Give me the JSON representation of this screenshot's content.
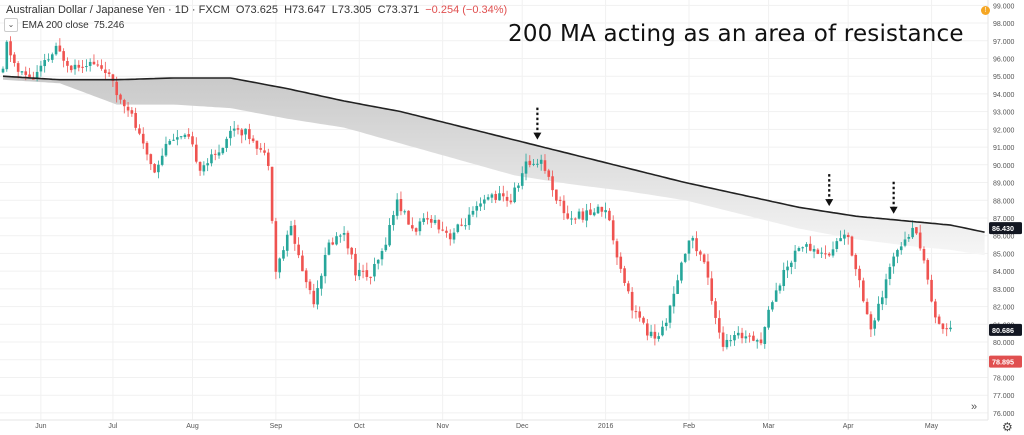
{
  "header": {
    "symbol": "Australian Dollar / Japanese Yen · 1D · FXCM",
    "open": "O73.625",
    "high": "H73.647",
    "low": "L73.305",
    "close": "C73.371",
    "change": "−0.254 (−0.34%)",
    "indicator_name": "EMA 200 close",
    "indicator_value": "75.246",
    "toggle_icon": "chevron-down-icon"
  },
  "annotation": "200 MA acting as an area of resistance",
  "badges": {
    "current_price": "86.430",
    "last_price": "80.686",
    "red_price": "78.895",
    "alert": "!"
  },
  "colors": {
    "up": "#26a69a",
    "down": "#ef5350",
    "ma": "#222222",
    "band": "#d0d0d0",
    "red_badge": "#e04f4f"
  },
  "chart_data": {
    "type": "candlestick",
    "title": "Australian Dollar / Japanese Yen · 1D · FXCM",
    "ylim": [
      75.6,
      99.3
    ],
    "y_ticks": [
      "99.000",
      "98.000",
      "97.000",
      "96.000",
      "95.000",
      "94.000",
      "93.000",
      "92.000",
      "91.000",
      "90.000",
      "89.000",
      "88.000",
      "87.000",
      "86.000",
      "85.000",
      "84.000",
      "83.000",
      "82.000",
      "81.000",
      "80.000",
      "79.000",
      "78.000",
      "77.000",
      "76.000"
    ],
    "x_labels": [
      "Jun",
      "Jul",
      "Aug",
      "Sep",
      "Oct",
      "Nov",
      "Dec",
      "2016",
      "Feb",
      "Mar",
      "Apr",
      "May"
    ],
    "x_label_index": [
      10,
      29,
      50,
      72,
      94,
      116,
      137,
      159,
      181,
      202,
      223,
      245
    ],
    "price_path": [
      {
        "i": 0,
        "p": 95.2
      },
      {
        "i": 1,
        "p": 96.8
      },
      {
        "i": 4,
        "p": 95.2
      },
      {
        "i": 8,
        "p": 94.9
      },
      {
        "i": 14,
        "p": 96.5
      },
      {
        "i": 18,
        "p": 95.6
      },
      {
        "i": 22,
        "p": 95.8
      },
      {
        "i": 27,
        "p": 95.4
      },
      {
        "i": 30,
        "p": 94.0
      },
      {
        "i": 33,
        "p": 93.3
      },
      {
        "i": 37,
        "p": 91.0
      },
      {
        "i": 40,
        "p": 89.7
      },
      {
        "i": 44,
        "p": 91.6
      },
      {
        "i": 49,
        "p": 91.4
      },
      {
        "i": 52,
        "p": 89.9
      },
      {
        "i": 56,
        "p": 90.5
      },
      {
        "i": 61,
        "p": 92.2
      },
      {
        "i": 66,
        "p": 91.5
      },
      {
        "i": 70,
        "p": 90.2
      },
      {
        "i": 72,
        "p": 84.0
      },
      {
        "i": 76,
        "p": 86.5
      },
      {
        "i": 79,
        "p": 84.0
      },
      {
        "i": 82,
        "p": 82.4
      },
      {
        "i": 86,
        "p": 85.5
      },
      {
        "i": 90,
        "p": 86.3
      },
      {
        "i": 93,
        "p": 84.0
      },
      {
        "i": 97,
        "p": 83.7
      },
      {
        "i": 100,
        "p": 85.0
      },
      {
        "i": 104,
        "p": 88.0
      },
      {
        "i": 108,
        "p": 86.3
      },
      {
        "i": 113,
        "p": 87.0
      },
      {
        "i": 118,
        "p": 86.0
      },
      {
        "i": 124,
        "p": 87.2
      },
      {
        "i": 129,
        "p": 88.3
      },
      {
        "i": 134,
        "p": 88.0
      },
      {
        "i": 138,
        "p": 90.0
      },
      {
        "i": 142,
        "p": 90.3
      },
      {
        "i": 146,
        "p": 88.2
      },
      {
        "i": 149,
        "p": 87.0
      },
      {
        "i": 154,
        "p": 87.2
      },
      {
        "i": 159,
        "p": 87.6
      },
      {
        "i": 162,
        "p": 85.0
      },
      {
        "i": 166,
        "p": 82.0
      },
      {
        "i": 170,
        "p": 80.5
      },
      {
        "i": 173,
        "p": 80.2
      },
      {
        "i": 177,
        "p": 82.5
      },
      {
        "i": 181,
        "p": 86.0
      },
      {
        "i": 185,
        "p": 84.5
      },
      {
        "i": 188,
        "p": 81.5
      },
      {
        "i": 190,
        "p": 79.8
      },
      {
        "i": 193,
        "p": 80.2
      },
      {
        "i": 197,
        "p": 80.5
      },
      {
        "i": 200,
        "p": 80.0
      },
      {
        "i": 203,
        "p": 82.5
      },
      {
        "i": 207,
        "p": 84.3
      },
      {
        "i": 210,
        "p": 85.5
      },
      {
        "i": 214,
        "p": 85.2
      },
      {
        "i": 218,
        "p": 84.9
      },
      {
        "i": 221,
        "p": 86.0
      },
      {
        "i": 223,
        "p": 85.8
      },
      {
        "i": 226,
        "p": 83.5
      },
      {
        "i": 229,
        "p": 80.7
      },
      {
        "i": 232,
        "p": 82.5
      },
      {
        "i": 235,
        "p": 85.0
      },
      {
        "i": 238,
        "p": 86.0
      },
      {
        "i": 241,
        "p": 86.4
      },
      {
        "i": 243,
        "p": 84.5
      },
      {
        "i": 246,
        "p": 81.5
      },
      {
        "i": 248,
        "p": 80.7
      },
      {
        "i": 250,
        "p": 81.0
      }
    ],
    "ma_200": [
      {
        "i": 0,
        "p": 95.0
      },
      {
        "i": 15,
        "p": 94.8
      },
      {
        "i": 30,
        "p": 94.8
      },
      {
        "i": 45,
        "p": 94.9
      },
      {
        "i": 60,
        "p": 94.9
      },
      {
        "i": 75,
        "p": 94.3
      },
      {
        "i": 90,
        "p": 93.6
      },
      {
        "i": 105,
        "p": 93.0
      },
      {
        "i": 120,
        "p": 92.2
      },
      {
        "i": 135,
        "p": 91.4
      },
      {
        "i": 150,
        "p": 90.6
      },
      {
        "i": 165,
        "p": 89.8
      },
      {
        "i": 180,
        "p": 89.0
      },
      {
        "i": 195,
        "p": 88.3
      },
      {
        "i": 210,
        "p": 87.6
      },
      {
        "i": 225,
        "p": 87.1
      },
      {
        "i": 240,
        "p": 86.8
      },
      {
        "i": 250,
        "p": 86.6
      },
      {
        "i": 259,
        "p": 86.2
      }
    ],
    "band_lower": [
      {
        "i": 0,
        "p": 94.8
      },
      {
        "i": 15,
        "p": 94.6
      },
      {
        "i": 30,
        "p": 93.4
      },
      {
        "i": 45,
        "p": 93.4
      },
      {
        "i": 60,
        "p": 93.2
      },
      {
        "i": 75,
        "p": 92.6
      },
      {
        "i": 90,
        "p": 92.1
      },
      {
        "i": 105,
        "p": 91.2
      },
      {
        "i": 120,
        "p": 90.3
      },
      {
        "i": 135,
        "p": 89.4
      },
      {
        "i": 150,
        "p": 88.9
      },
      {
        "i": 165,
        "p": 88.5
      },
      {
        "i": 180,
        "p": 88.0
      },
      {
        "i": 195,
        "p": 87.2
      },
      {
        "i": 210,
        "p": 86.4
      },
      {
        "i": 225,
        "p": 85.8
      },
      {
        "i": 240,
        "p": 85.4
      },
      {
        "i": 250,
        "p": 85.2
      },
      {
        "i": 259,
        "p": 84.9
      }
    ],
    "arrows_at_index": [
      141,
      218,
      235
    ],
    "total_bars": 260,
    "seed": 11
  }
}
